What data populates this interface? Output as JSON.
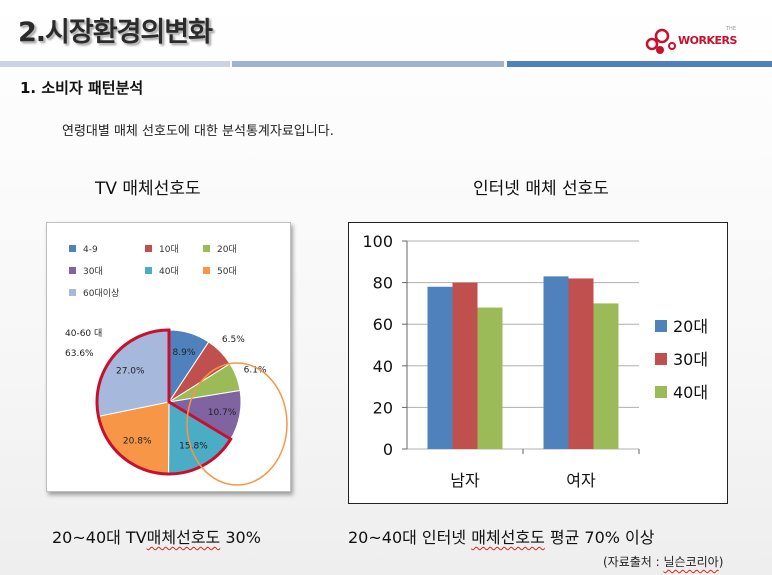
{
  "header": {
    "title": "2.시장환경의변화",
    "logo_text": "WORKERS",
    "logo_prefix": "THE"
  },
  "colors": {
    "accent_blue": "#4f81bd",
    "accent_light": "#c9d3e3",
    "accent_red": "#c8102e"
  },
  "section": {
    "title": "1. 소비자 패턴분석",
    "description": "연령대별 매체 선호도에 대한 분석통계자료입니다."
  },
  "chart_data": [
    {
      "type": "pie",
      "title": "TV 매체선호도",
      "categories": [
        "4-9",
        "10대",
        "20대",
        "30대",
        "40대",
        "50대",
        "60대이상"
      ],
      "values": [
        8.9,
        6.5,
        6.1,
        10.7,
        15.8,
        20.8,
        27.0
      ],
      "value_labels": [
        "8.9%",
        "6.5%",
        "6.1%",
        "10.7%",
        "15.8%",
        "20.8%",
        "27.0%"
      ],
      "colors": [
        "#4f81bd",
        "#c0504d",
        "#9bbb59",
        "#8064a2",
        "#4bacc6",
        "#f79646",
        "#a6b9dc"
      ],
      "annotation": [
        "40-60 대",
        "63.6%"
      ],
      "legend": "top",
      "caption": "20~40대 TV매체선호도 30%",
      "caption_plain": "20~40대 TV",
      "caption_marked": "매체선호도",
      "caption_tail": " 30%"
    },
    {
      "type": "bar",
      "title": "인터넷 매체 선호도",
      "categories": [
        "남자",
        "여자"
      ],
      "series": [
        {
          "name": "20대",
          "values": [
            78,
            83
          ],
          "color": "#4f81bd"
        },
        {
          "name": "30대",
          "values": [
            80,
            82
          ],
          "color": "#c0504d"
        },
        {
          "name": "40대",
          "values": [
            68,
            70
          ],
          "color": "#9bbb59"
        }
      ],
      "ylim": [
        0,
        100
      ],
      "yticks": [
        "0",
        "20",
        "40",
        "60",
        "80",
        "100"
      ],
      "legend": "right",
      "caption": "20~40대 인터넷 매체선호도 평균 70% 이상",
      "caption_plain": "20~40대 인터넷 ",
      "caption_marked": "매체선호도",
      "caption_tail": " 평균 70% 이상"
    }
  ],
  "source": {
    "prefix": "(자료출처 : ",
    "name": "닐슨코리아",
    "suffix": ")"
  }
}
